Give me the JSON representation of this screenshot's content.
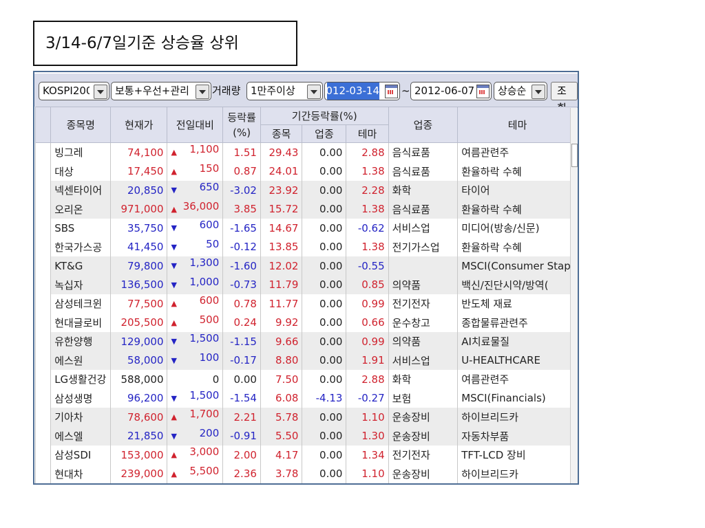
{
  "slide_title": "3/14-6/7일기준 상승율 상위",
  "toolbar": {
    "market": "KOSPI200",
    "stock_type": "보통+우선+관리",
    "volume_label": "거래량",
    "volume": "1만주이상",
    "start_date": "2012-03-14",
    "tilde": "~",
    "end_date": "2012-06-07",
    "sort": "상승순",
    "query_label": "조회"
  },
  "headers": {
    "name": "종목명",
    "price": "현재가",
    "change": "전일대비",
    "rate": "등락률\n(%)",
    "period": "기간등락률(%)",
    "p_stock": "종목",
    "p_industry": "업종",
    "p_theme": "테마",
    "industry": "업종",
    "theme": "테마"
  },
  "colors": {
    "up": "#d0222e",
    "down": "#2424c4"
  },
  "rows": [
    {
      "name": "빙그레",
      "price": "74,100",
      "dir": "up",
      "change": "1,100",
      "rate": "1.51",
      "p_stock": "29.43",
      "p_industry": "0.00",
      "p_theme": "2.88",
      "industry": "음식료품",
      "theme": "여름관련주"
    },
    {
      "name": "대상",
      "price": "17,450",
      "dir": "up",
      "change": "150",
      "rate": "0.87",
      "p_stock": "24.01",
      "p_industry": "0.00",
      "p_theme": "1.38",
      "industry": "음식료품",
      "theme": "환율하락 수혜"
    },
    {
      "name": "넥센타이어",
      "price": "20,850",
      "dir": "down",
      "change": "650",
      "rate": "-3.02",
      "p_stock": "23.92",
      "p_industry": "0.00",
      "p_theme": "2.28",
      "industry": "화학",
      "theme": "타이어"
    },
    {
      "name": "오리온",
      "price": "971,000",
      "dir": "up",
      "change": "36,000",
      "rate": "3.85",
      "p_stock": "15.72",
      "p_industry": "0.00",
      "p_theme": "1.38",
      "industry": "음식료품",
      "theme": "환율하락 수혜"
    },
    {
      "name": "SBS",
      "price": "35,750",
      "dir": "down",
      "change": "600",
      "rate": "-1.65",
      "p_stock": "14.67",
      "p_industry": "0.00",
      "p_theme": "-0.62",
      "industry": "서비스업",
      "theme": "미디어(방송/신문)"
    },
    {
      "name": "한국가스공",
      "price": "41,450",
      "dir": "down",
      "change": "50",
      "rate": "-0.12",
      "p_stock": "13.85",
      "p_industry": "0.00",
      "p_theme": "1.38",
      "industry": "전기가스업",
      "theme": "환율하락 수혜"
    },
    {
      "name": "KT&G",
      "price": "79,800",
      "dir": "down",
      "change": "1,300",
      "rate": "-1.60",
      "p_stock": "12.02",
      "p_industry": "0.00",
      "p_theme": "-0.55",
      "industry": "",
      "theme": "MSCI(Consumer Stapl"
    },
    {
      "name": "녹십자",
      "price": "136,500",
      "dir": "down",
      "change": "1,000",
      "rate": "-0.73",
      "p_stock": "11.79",
      "p_industry": "0.00",
      "p_theme": "0.85",
      "industry": "의약품",
      "theme": "백신/진단시약/방역("
    },
    {
      "name": "삼성테크윈",
      "price": "77,500",
      "dir": "up",
      "change": "600",
      "rate": "0.78",
      "p_stock": "11.77",
      "p_industry": "0.00",
      "p_theme": "0.99",
      "industry": "전기전자",
      "theme": "반도체 재료"
    },
    {
      "name": "현대글로비",
      "price": "205,500",
      "dir": "up",
      "change": "500",
      "rate": "0.24",
      "p_stock": "9.92",
      "p_industry": "0.00",
      "p_theme": "0.66",
      "industry": "운수창고",
      "theme": "종합물류관련주"
    },
    {
      "name": "유한양행",
      "price": "129,000",
      "dir": "down",
      "change": "1,500",
      "rate": "-1.15",
      "p_stock": "9.66",
      "p_industry": "0.00",
      "p_theme": "0.99",
      "industry": "의약품",
      "theme": "AI치료물질"
    },
    {
      "name": "에스원",
      "price": "58,000",
      "dir": "down",
      "change": "100",
      "rate": "-0.17",
      "p_stock": "8.80",
      "p_industry": "0.00",
      "p_theme": "1.91",
      "industry": "서비스업",
      "theme": "U-HEALTHCARE"
    },
    {
      "name": "LG생활건강",
      "price": "588,000",
      "dir": "flat",
      "change": "0",
      "rate": "0.00",
      "p_stock": "7.50",
      "p_industry": "0.00",
      "p_theme": "2.88",
      "industry": "화학",
      "theme": "여름관련주"
    },
    {
      "name": "삼성생명",
      "price": "96,200",
      "dir": "down",
      "change": "1,500",
      "rate": "-1.54",
      "p_stock": "6.08",
      "p_industry": "-4.13",
      "p_theme": "-0.27",
      "industry": "보험",
      "theme": "MSCI(Financials)"
    },
    {
      "name": "기아차",
      "price": "78,600",
      "dir": "up",
      "change": "1,700",
      "rate": "2.21",
      "p_stock": "5.78",
      "p_industry": "0.00",
      "p_theme": "1.10",
      "industry": "운송장비",
      "theme": "하이브리드카"
    },
    {
      "name": "에스엘",
      "price": "21,850",
      "dir": "down",
      "change": "200",
      "rate": "-0.91",
      "p_stock": "5.50",
      "p_industry": "0.00",
      "p_theme": "1.30",
      "industry": "운송장비",
      "theme": "자동차부품"
    },
    {
      "name": "삼성SDI",
      "price": "153,000",
      "dir": "up",
      "change": "3,000",
      "rate": "2.00",
      "p_stock": "4.17",
      "p_industry": "0.00",
      "p_theme": "1.34",
      "industry": "전기전자",
      "theme": "TFT-LCD 장비"
    },
    {
      "name": "현대차",
      "price": "239,000",
      "dir": "up",
      "change": "5,500",
      "rate": "2.36",
      "p_stock": "3.78",
      "p_industry": "0.00",
      "p_theme": "1.10",
      "industry": "운송장비",
      "theme": "하이브리드카"
    }
  ]
}
